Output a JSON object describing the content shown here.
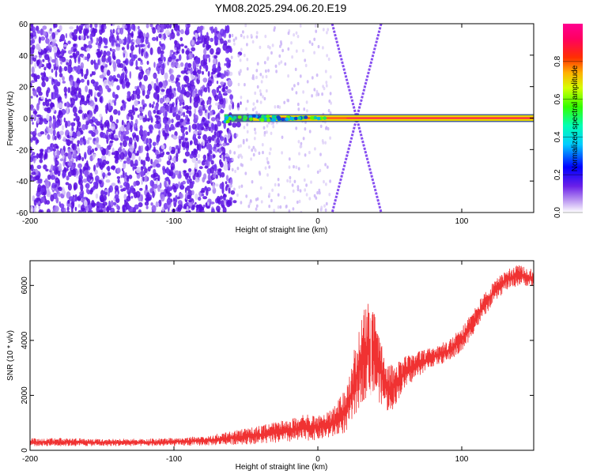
{
  "title": "YM08.2025.294.06.20.E19",
  "charts": [
    {
      "type": "heatmap",
      "xlabel": "Height of straight line (km)",
      "ylabel": "Frequency (Hz)",
      "xlim": [
        -200,
        150
      ],
      "ylim": [
        -60,
        60
      ],
      "xticks": [
        -200,
        -100,
        0,
        100
      ],
      "yticks": [
        -60,
        -40,
        -20,
        0,
        20,
        40,
        60
      ],
      "features": {
        "noise_region_km": [
          -200,
          -60
        ],
        "carrier_band_hz": [
          -1.5,
          1.5
        ],
        "carrier_start_km": -65,
        "carrier_peak_km": [
          -40,
          40
        ],
        "crossing_lines": [
          {
            "x_at_plus60": 10,
            "x_at_zero": 27,
            "x_at_minus60": 44
          },
          {
            "x_at_plus60": 44,
            "x_at_zero": 27,
            "x_at_minus60": 10
          }
        ]
      },
      "colorbar": {
        "label": "Normalized spectral amplitude",
        "ticks": [
          0.0,
          0.2,
          0.4,
          0.6,
          0.8
        ],
        "range": [
          0,
          1
        ]
      }
    },
    {
      "type": "line",
      "xlabel": "Height of straight line (km)",
      "ylabel": "SNR (10 * v/v)",
      "xlim": [
        -200,
        150
      ],
      "ylim": [
        0,
        6900
      ],
      "xticks": [
        -200,
        -100,
        0,
        100
      ],
      "yticks": [
        0,
        2000,
        4000,
        6000
      ],
      "color": "#f03232",
      "envelope": {
        "x": [
          -200,
          -180,
          -150,
          -120,
          -100,
          -80,
          -60,
          -40,
          -20,
          -10,
          0,
          10,
          20,
          25,
          30,
          35,
          40,
          45,
          50,
          55,
          60,
          70,
          80,
          90,
          100,
          110,
          120,
          130,
          140,
          150
        ],
        "low": [
          150,
          150,
          150,
          150,
          150,
          170,
          200,
          230,
          280,
          330,
          380,
          450,
          650,
          1100,
          1700,
          2000,
          1900,
          1600,
          1300,
          1750,
          2200,
          2700,
          3050,
          3200,
          3550,
          4400,
          5200,
          5800,
          6000,
          5950
        ],
        "high": [
          450,
          450,
          420,
          420,
          450,
          520,
          700,
          900,
          1150,
          1300,
          1300,
          1500,
          2300,
          3600,
          4900,
          5400,
          5000,
          3800,
          3100,
          3250,
          3400,
          3600,
          3750,
          4000,
          4500,
          5300,
          6000,
          6550,
          6800,
          6550
        ]
      }
    }
  ]
}
